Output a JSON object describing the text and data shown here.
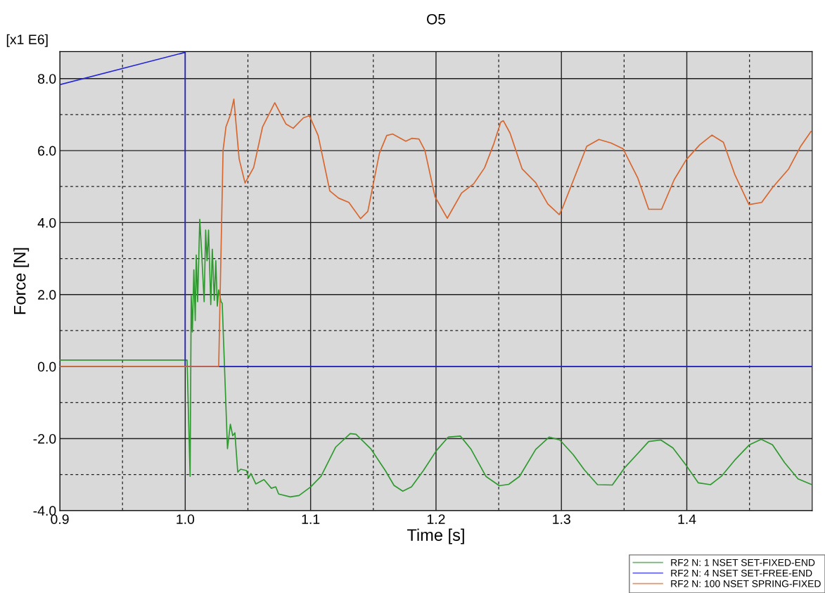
{
  "chart_data": {
    "type": "line",
    "title": "O5",
    "xlabel": "Time [s]",
    "ylabel": "Force [N]",
    "annotations": [
      "[x1 E6]"
    ],
    "xlim": [
      0.9,
      1.5
    ],
    "ylim": [
      -4,
      8.75
    ],
    "xticks": [
      {
        "value": 0.9,
        "label": "0.9"
      },
      {
        "value": 0.95,
        "label": null
      },
      {
        "value": 1.0,
        "label": "1.0"
      },
      {
        "value": 1.05,
        "label": null
      },
      {
        "value": 1.1,
        "label": "1.1"
      },
      {
        "value": 1.15,
        "label": null
      },
      {
        "value": 1.2,
        "label": "1.2"
      },
      {
        "value": 1.25,
        "label": null
      },
      {
        "value": 1.3,
        "label": "1.3"
      },
      {
        "value": 1.35,
        "label": null
      },
      {
        "value": 1.4,
        "label": "1.4"
      },
      {
        "value": 1.45,
        "label": null
      }
    ],
    "yticks": [
      {
        "value": -4,
        "label": "-4.0"
      },
      {
        "value": -3,
        "label": null
      },
      {
        "value": -2,
        "label": "-2.0"
      },
      {
        "value": -1,
        "label": null
      },
      {
        "value": 0,
        "label": "0.0"
      },
      {
        "value": 1,
        "label": null
      },
      {
        "value": 2,
        "label": "2.0"
      },
      {
        "value": 3,
        "label": null
      },
      {
        "value": 4,
        "label": "4.0"
      },
      {
        "value": 5,
        "label": null
      },
      {
        "value": 6,
        "label": "6.0"
      },
      {
        "value": 7,
        "label": null
      },
      {
        "value": 8,
        "label": "8.0"
      }
    ],
    "grid": true,
    "legend": "bottom right",
    "marker": "none",
    "line_style": "solid",
    "series": [
      {
        "name": "RF2 N: 1 NSET SET-FIXED-END",
        "color": "#2e992e",
        "x": [
          0.9,
          1.0015,
          1.0039,
          1.0048,
          1.0057,
          1.0069,
          1.008,
          1.0088,
          1.0099,
          1.0116,
          1.0132,
          1.0151,
          1.0163,
          1.0174,
          1.0186,
          1.0204,
          1.0216,
          1.0232,
          1.0244,
          1.0256,
          1.0267,
          1.0286,
          1.0295,
          1.0337,
          1.036,
          1.0379,
          1.0396,
          1.0419,
          1.0442,
          1.0489,
          1.0505,
          1.0524,
          1.0563,
          1.0628,
          1.0687,
          1.0722,
          1.0745,
          1.0838,
          1.0908,
          1.1001,
          1.1083,
          1.1199,
          1.1316,
          1.1362,
          1.1479,
          1.1596,
          1.1665,
          1.1735,
          1.1805,
          1.1899,
          1.2004,
          1.2097,
          1.2194,
          1.228,
          1.2398,
          1.2505,
          1.258,
          1.2666,
          1.2795,
          1.2902,
          1.2988,
          1.3095,
          1.3181,
          1.3288,
          1.3406,
          1.3502,
          1.361,
          1.3696,
          1.3793,
          1.3889,
          1.3996,
          1.4092,
          1.4189,
          1.4275,
          1.4382,
          1.45,
          1.4593,
          1.4683,
          1.478,
          1.4887,
          1.499
        ],
        "values": [
          0.18,
          0.18,
          -3.05,
          1.97,
          0.96,
          2.69,
          1.28,
          3.1,
          1.8,
          4.09,
          3.1,
          1.8,
          3.79,
          2.94,
          3.79,
          1.72,
          3.26,
          1.84,
          2.94,
          1.68,
          2.13,
          1.8,
          1.76,
          -2.28,
          -1.6,
          -1.92,
          -1.84,
          -2.93,
          -2.85,
          -2.89,
          -3.09,
          -2.97,
          -3.26,
          -3.14,
          -3.38,
          -3.34,
          -3.54,
          -3.62,
          -3.58,
          -3.34,
          -3.05,
          -2.24,
          -1.86,
          -1.88,
          -2.28,
          -2.89,
          -3.3,
          -3.46,
          -3.34,
          -2.89,
          -2.33,
          -1.96,
          -1.93,
          -2.3,
          -3.05,
          -3.31,
          -3.27,
          -3.05,
          -2.3,
          -1.96,
          -2.04,
          -2.45,
          -2.86,
          -3.28,
          -3.29,
          -2.82,
          -2.41,
          -2.08,
          -2.04,
          -2.26,
          -2.75,
          -3.23,
          -3.28,
          -3.05,
          -2.6,
          -2.17,
          -2.02,
          -2.17,
          -2.67,
          -3.12,
          -3.27
        ]
      },
      {
        "name": "RF2 N: 4 NSET SET-FREE-END",
        "color": "#2323d8",
        "x": [
          0.9,
          1.0,
          1.0,
          1.5
        ],
        "values": [
          7.83,
          8.73,
          0,
          0
        ]
      },
      {
        "name": "RF2 N: 100 NSET SPRING-FIXED",
        "color": "#d9662c",
        "x": [
          0.9,
          1.0267,
          1.0302,
          1.0325,
          1.036,
          1.0388,
          1.043,
          1.0477,
          1.0546,
          1.0617,
          1.0714,
          1.0803,
          1.0861,
          1.0943,
          1.099,
          1.106,
          1.1153,
          1.1223,
          1.1305,
          1.1398,
          1.1456,
          1.1549,
          1.1607,
          1.1654,
          1.1759,
          1.1806,
          1.1864,
          1.1911,
          1.1992,
          1.209,
          1.2204,
          1.2301,
          1.2387,
          1.2462,
          1.2516,
          1.2537,
          1.259,
          1.2687,
          1.2795,
          1.2891,
          1.2983,
          1.3009,
          1.3202,
          1.3299,
          1.3395,
          1.3492,
          1.361,
          1.3696,
          1.3799,
          1.3899,
          1.3996,
          1.4103,
          1.42,
          1.4292,
          1.4382,
          1.4496,
          1.4597,
          1.4683,
          1.4812,
          1.4908,
          1.499
        ],
        "values": [
          0,
          0,
          6.01,
          6.66,
          6.99,
          7.43,
          5.77,
          5.1,
          5.53,
          6.66,
          7.33,
          6.74,
          6.62,
          6.91,
          6.97,
          6.42,
          4.88,
          4.68,
          4.56,
          4.11,
          4.31,
          5.93,
          6.42,
          6.46,
          6.26,
          6.34,
          6.32,
          6.01,
          4.72,
          4.12,
          4.82,
          5.08,
          5.52,
          6.2,
          6.79,
          6.83,
          6.49,
          5.49,
          5.11,
          4.52,
          4.22,
          4.41,
          6.12,
          6.31,
          6.21,
          6.05,
          5.23,
          4.37,
          4.37,
          5.19,
          5.75,
          6.16,
          6.43,
          6.23,
          5.34,
          4.5,
          4.56,
          4.97,
          5.49,
          6.12,
          6.53
        ]
      }
    ]
  }
}
